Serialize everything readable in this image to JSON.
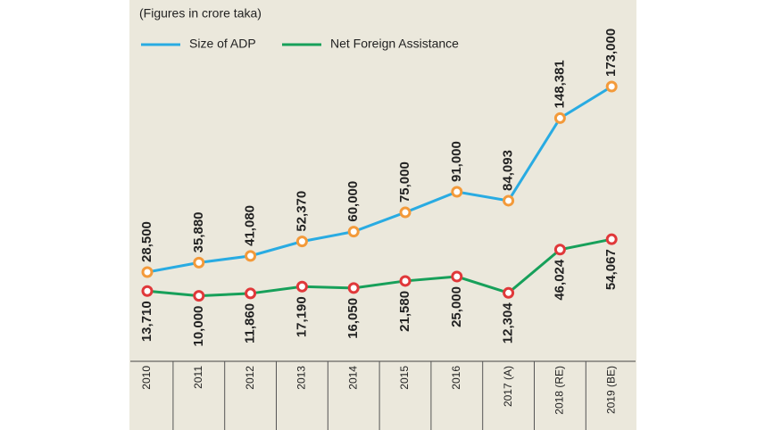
{
  "chart_data": {
    "type": "line",
    "note": "(Figures in crore taka)",
    "categories": [
      "2010",
      "2011",
      "2012",
      "2013",
      "2014",
      "2015",
      "2016",
      "2017 (A)",
      "2018 (RE)",
      "2019 (BE)"
    ],
    "series": [
      {
        "name": "Size of ADP",
        "color": "#29abe2",
        "marker_color": "#f39a3a",
        "values": [
          28500,
          35880,
          41080,
          52370,
          60000,
          75000,
          91000,
          84093,
          148381,
          173000
        ],
        "value_labels": [
          "28,500",
          "35,880",
          "41,080",
          "52,370",
          "60,000",
          "75,000",
          "91,000",
          "84,093",
          "148,381",
          "173,000"
        ]
      },
      {
        "name": "Net Foreign Assistance",
        "color": "#17a05a",
        "marker_color": "#e0383a",
        "values": [
          13710,
          10000,
          11860,
          17190,
          16050,
          21580,
          25000,
          12304,
          46024,
          54067
        ],
        "value_labels": [
          "13,710",
          "10,000",
          "11,860",
          "17,190",
          "16,050",
          "21,580",
          "25,000",
          "12,304",
          "46,024",
          "54,067"
        ]
      }
    ]
  }
}
